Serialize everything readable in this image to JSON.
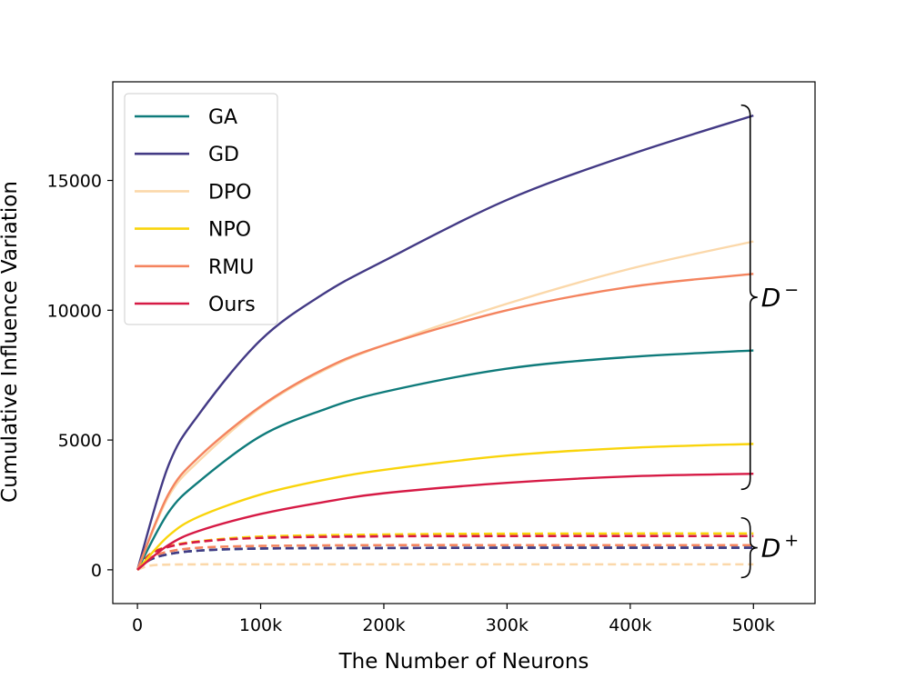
{
  "chart_data": {
    "type": "line",
    "title": "",
    "xlabel": "The Number of Neurons",
    "ylabel": "Cumulative Influence Variation",
    "xlim": [
      -20000,
      550000
    ],
    "ylim": [
      -1300,
      18800
    ],
    "x_ticks": [
      0,
      100000,
      200000,
      300000,
      400000,
      500000
    ],
    "x_tick_labels": [
      "0",
      "100k",
      "200k",
      "300k",
      "400k",
      "500k"
    ],
    "y_ticks": [
      0,
      5000,
      10000,
      15000
    ],
    "y_tick_labels": [
      "0",
      "5000",
      "10000",
      "15000"
    ],
    "legend_position": "top-left",
    "series": [
      {
        "name": "GA",
        "color": "#0f7b7b",
        "x": [
          0,
          25000,
          50000,
          100000,
          150000,
          200000,
          300000,
          400000,
          500000
        ],
        "values": [
          0,
          2200,
          3400,
          5150,
          6150,
          6850,
          7750,
          8200,
          8450
        ]
      },
      {
        "name": "GD",
        "color": "#433a85",
        "x": [
          0,
          25000,
          50000,
          100000,
          150000,
          200000,
          300000,
          400000,
          500000
        ],
        "values": [
          0,
          4000,
          6000,
          8850,
          10600,
          11900,
          14250,
          16000,
          17500
        ]
      },
      {
        "name": "DPO",
        "color": "#fbd8aa",
        "x": [
          0,
          25000,
          50000,
          100000,
          150000,
          200000,
          300000,
          400000,
          500000
        ],
        "values": [
          0,
          2800,
          4200,
          6250,
          7650,
          8650,
          10250,
          11600,
          12650
        ]
      },
      {
        "name": "NPO",
        "color": "#f9d40b",
        "x": [
          0,
          25000,
          50000,
          100000,
          150000,
          200000,
          300000,
          400000,
          500000
        ],
        "values": [
          0,
          1300,
          2050,
          2900,
          3450,
          3850,
          4400,
          4700,
          4850
        ]
      },
      {
        "name": "RMU",
        "color": "#f4845f",
        "x": [
          0,
          25000,
          50000,
          100000,
          150000,
          200000,
          300000,
          400000,
          500000
        ],
        "values": [
          0,
          2900,
          4350,
          6300,
          7700,
          8650,
          10000,
          10900,
          11400
        ]
      },
      {
        "name": "Ours",
        "color": "#d61a45",
        "x": [
          0,
          25000,
          50000,
          100000,
          150000,
          200000,
          300000,
          400000,
          500000
        ],
        "values": [
          0,
          950,
          1500,
          2150,
          2600,
          2950,
          3350,
          3600,
          3700
        ]
      }
    ],
    "dashed_series": [
      {
        "name": "GA",
        "color": "#0f7b7b",
        "x": [
          0,
          10000,
          25000,
          50000,
          100000,
          200000,
          300000,
          500000
        ],
        "values": [
          0,
          380,
          600,
          740,
          820,
          840,
          850,
          850
        ]
      },
      {
        "name": "GD",
        "color": "#433a85",
        "x": [
          0,
          10000,
          25000,
          50000,
          100000,
          200000,
          300000,
          500000
        ],
        "values": [
          0,
          380,
          600,
          740,
          820,
          840,
          850,
          850
        ]
      },
      {
        "name": "DPO",
        "color": "#fbd8aa",
        "x": [
          0,
          10000,
          25000,
          50000,
          100000,
          200000,
          300000,
          500000
        ],
        "values": [
          0,
          160,
          200,
          210,
          210,
          210,
          210,
          210
        ]
      },
      {
        "name": "NPO",
        "color": "#f9d40b",
        "x": [
          0,
          10000,
          25000,
          50000,
          100000,
          200000,
          300000,
          500000
        ],
        "values": [
          0,
          600,
          900,
          1100,
          1280,
          1360,
          1390,
          1400
        ]
      },
      {
        "name": "RMU",
        "color": "#f4845f",
        "x": [
          0,
          10000,
          25000,
          50000,
          100000,
          200000,
          300000,
          500000
        ],
        "values": [
          0,
          450,
          700,
          850,
          920,
          950,
          950,
          950
        ]
      },
      {
        "name": "Ours",
        "color": "#d61a45",
        "x": [
          0,
          10000,
          25000,
          50000,
          100000,
          200000,
          300000,
          500000
        ],
        "values": [
          0,
          580,
          880,
          1080,
          1230,
          1290,
          1300,
          1300
        ]
      }
    ],
    "annotations": [
      {
        "label": "D",
        "sup": "−",
        "y_range": [
          3100,
          17900
        ]
      },
      {
        "label": "D",
        "sup": "+",
        "y_range": [
          -300,
          2000
        ]
      }
    ]
  }
}
